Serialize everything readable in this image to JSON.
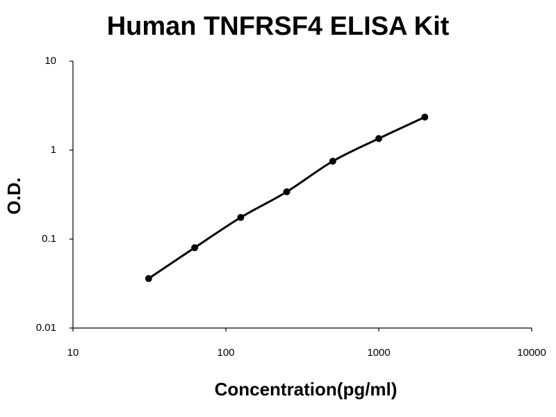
{
  "chart_data": {
    "type": "line",
    "title": "Human TNFRSF4 ELISA Kit",
    "x_label": "Concentration(pg/ml)",
    "y_label": "O.D.",
    "x": [
      31.25,
      62.5,
      125,
      250,
      500,
      1000,
      2000
    ],
    "series": [
      {
        "values": [
          0.036,
          0.08,
          0.175,
          0.34,
          0.75,
          1.35,
          2.35
        ],
        "color": "#000000"
      }
    ],
    "xlim": [
      10,
      10000
    ],
    "ylim": [
      0.01,
      10
    ],
    "xticks": [
      10,
      100,
      1000,
      10000
    ],
    "yticks": [
      0.01,
      0.1,
      1,
      10
    ],
    "x_scale": "log",
    "y_scale": "log",
    "markers": true,
    "smooth": true
  }
}
